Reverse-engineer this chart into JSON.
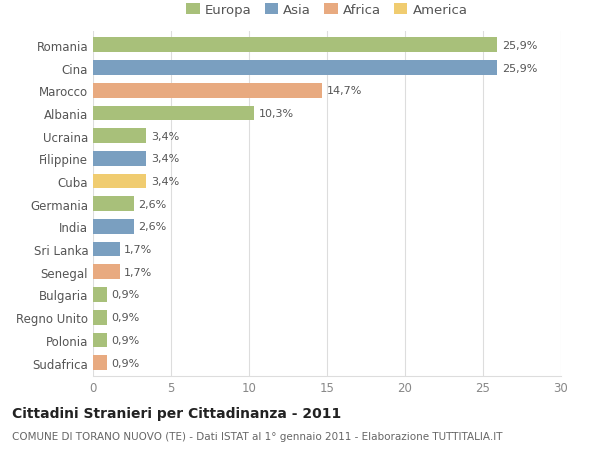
{
  "countries": [
    "Romania",
    "Cina",
    "Marocco",
    "Albania",
    "Ucraina",
    "Filippine",
    "Cuba",
    "Germania",
    "India",
    "Sri Lanka",
    "Senegal",
    "Bulgaria",
    "Regno Unito",
    "Polonia",
    "Sudafrica"
  ],
  "values": [
    25.9,
    25.9,
    14.7,
    10.3,
    3.4,
    3.4,
    3.4,
    2.6,
    2.6,
    1.7,
    1.7,
    0.9,
    0.9,
    0.9,
    0.9
  ],
  "labels": [
    "25,9%",
    "25,9%",
    "14,7%",
    "10,3%",
    "3,4%",
    "3,4%",
    "3,4%",
    "2,6%",
    "2,6%",
    "1,7%",
    "1,7%",
    "0,9%",
    "0,9%",
    "0,9%",
    "0,9%"
  ],
  "continents": [
    "Europa",
    "Asia",
    "Africa",
    "Europa",
    "Europa",
    "Asia",
    "America",
    "Europa",
    "Asia",
    "Asia",
    "Africa",
    "Europa",
    "Europa",
    "Europa",
    "Africa"
  ],
  "continent_colors": {
    "Europa": "#a8c07a",
    "Asia": "#7a9fc0",
    "Africa": "#e8aa80",
    "America": "#f0cc70"
  },
  "legend_order": [
    "Europa",
    "Asia",
    "Africa",
    "America"
  ],
  "title": "Cittadini Stranieri per Cittadinanza - 2011",
  "subtitle": "COMUNE DI TORANO NUOVO (TE) - Dati ISTAT al 1° gennaio 2011 - Elaborazione TUTTITALIA.IT",
  "xlim": [
    0,
    30
  ],
  "xticks": [
    0,
    5,
    10,
    15,
    20,
    25,
    30
  ],
  "background_color": "#ffffff",
  "grid_color": "#dddddd",
  "bar_height": 0.65,
  "title_fontsize": 10,
  "subtitle_fontsize": 7.5,
  "label_fontsize": 8,
  "tick_fontsize": 8.5,
  "legend_fontsize": 9.5
}
